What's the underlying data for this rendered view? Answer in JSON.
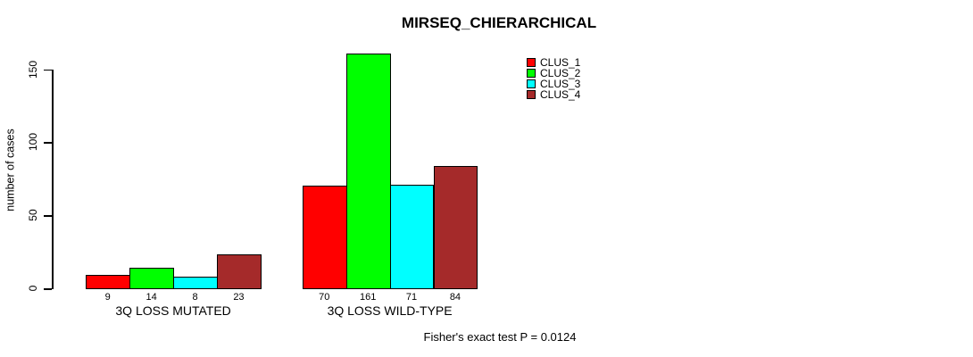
{
  "chart_data": {
    "type": "bar",
    "title": "MIRSEQ_CHIERARCHICAL",
    "ylabel": "number of cases",
    "xlabel": "",
    "ylim": [
      0,
      165
    ],
    "yticks": [
      0,
      50,
      100,
      150
    ],
    "grid": false,
    "legend_position": "top-right",
    "categories": [
      "3Q LOSS MUTATED",
      "3Q LOSS WILD-TYPE"
    ],
    "series": [
      {
        "name": "CLUS_1",
        "color": "#ff0000",
        "values": [
          9,
          70
        ]
      },
      {
        "name": "CLUS_2",
        "color": "#00ff00",
        "values": [
          14,
          161
        ]
      },
      {
        "name": "CLUS_3",
        "color": "#00ffff",
        "values": [
          8,
          71
        ]
      },
      {
        "name": "CLUS_4",
        "color": "#a52a2a",
        "values": [
          23,
          84
        ]
      }
    ],
    "bar_value_labels": [
      [
        "9",
        "14",
        "8",
        "23"
      ],
      [
        "70",
        "161",
        "71",
        "84"
      ]
    ],
    "annotation": "Fisher's exact test P = 0.0124",
    "colors": {
      "background": "#ffffff",
      "axis": "#000000",
      "text": "#000000"
    }
  }
}
